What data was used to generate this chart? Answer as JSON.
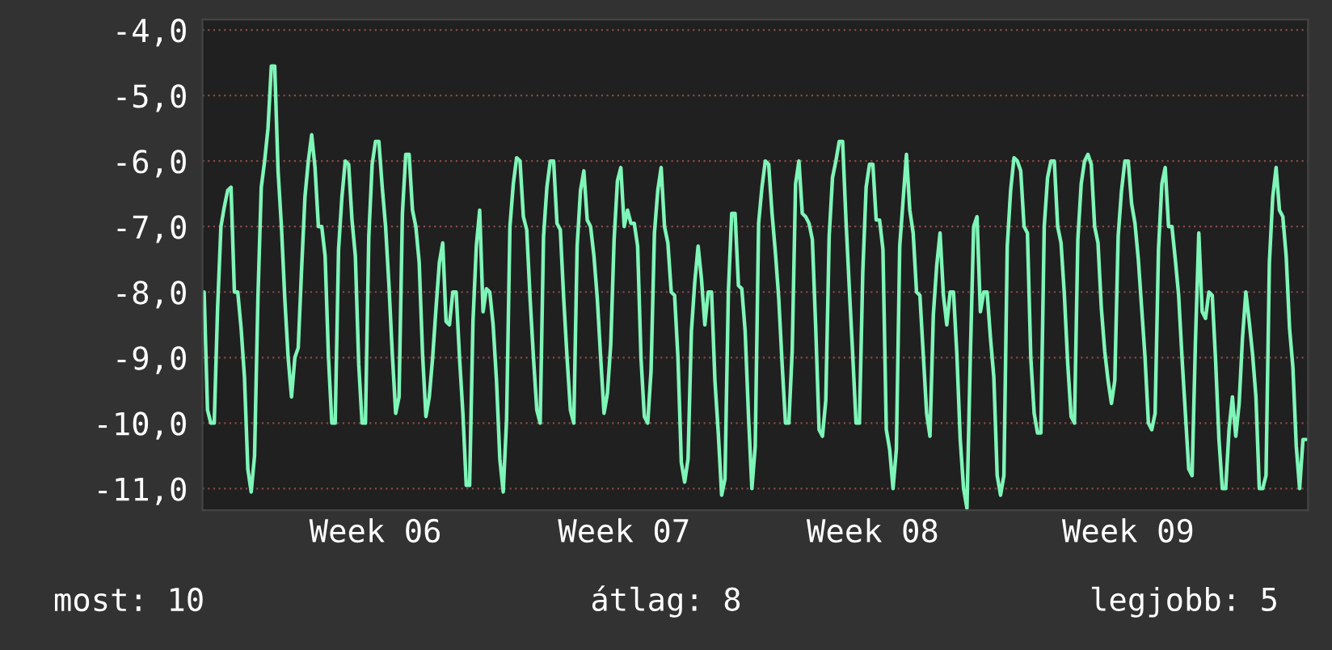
{
  "chart_data": {
    "type": "line",
    "categories": [
      null,
      null,
      null,
      null,
      null,
      null,
      null,
      null,
      null,
      null,
      null,
      null,
      null,
      null,
      null,
      null,
      null,
      null,
      null,
      null,
      null,
      null,
      null,
      null,
      null,
      null,
      null,
      null,
      null,
      null,
      null,
      null,
      null,
      null,
      null,
      null,
      null,
      null,
      null,
      null,
      null,
      null,
      null,
      null,
      null,
      null,
      null,
      null,
      null,
      null,
      null,
      "Week 06",
      null,
      null,
      null,
      null,
      null,
      null,
      null,
      null,
      null,
      null,
      null,
      null,
      null,
      null,
      null,
      null,
      null,
      null,
      null,
      null,
      null,
      null,
      null,
      null,
      null,
      null,
      null,
      null,
      null,
      null,
      null,
      null,
      null,
      null,
      null,
      null,
      null,
      null,
      null,
      null,
      null,
      null,
      null,
      null,
      null,
      null,
      null,
      null,
      null,
      null,
      null,
      null,
      null,
      null,
      null,
      null,
      null,
      null,
      null,
      null,
      null,
      null,
      null,
      null,
      null,
      null,
      null,
      null,
      null,
      null,
      null,
      null,
      null,
      "Week 07",
      null,
      null,
      null,
      null,
      null,
      null,
      null,
      null,
      null,
      null,
      null,
      null,
      null,
      null,
      null,
      null,
      null,
      null,
      null,
      null,
      null,
      null,
      null,
      null,
      null,
      null,
      null,
      null,
      null,
      null,
      null,
      null,
      null,
      null,
      null,
      null,
      null,
      null,
      null,
      null,
      null,
      null,
      null,
      null,
      null,
      null,
      null,
      null,
      null,
      null,
      null,
      null,
      null,
      null,
      null,
      null,
      null,
      null,
      null,
      null,
      null,
      null,
      null,
      null,
      null,
      null,
      null,
      null,
      null,
      null,
      null,
      null,
      null,
      "Week 08",
      null,
      null,
      null,
      null,
      null,
      null,
      null,
      null,
      null,
      null,
      null,
      null,
      null,
      null,
      null,
      null,
      null,
      null,
      null,
      null,
      null,
      null,
      null,
      null,
      null,
      null,
      null,
      null,
      null,
      null,
      null,
      null,
      null,
      null,
      null,
      null,
      null,
      null,
      null,
      null,
      null,
      null,
      null,
      null,
      null,
      null,
      null,
      null,
      null,
      null,
      null,
      null,
      null,
      null,
      null,
      null,
      null,
      null,
      null,
      null,
      null,
      null,
      null,
      null,
      null,
      null,
      null,
      null,
      null,
      null,
      null,
      null,
      null,
      null,
      null,
      "Week 09",
      null,
      null,
      null,
      null,
      null,
      null,
      null,
      null,
      null,
      null,
      null,
      null,
      null,
      null,
      null,
      null,
      null,
      null,
      null,
      null,
      null,
      null,
      null,
      null,
      null,
      null,
      null,
      null,
      null,
      null,
      null,
      null,
      null,
      null,
      null,
      null,
      null,
      null,
      null,
      null,
      null,
      null,
      null,
      null,
      null,
      null,
      null,
      null,
      null,
      null,
      null,
      null,
      null
    ],
    "series": [
      {
        "color": "#7ff5b8",
        "values": [
          -8.0,
          -9.8,
          -10.0,
          -10.0,
          -8.25,
          -7.0,
          -6.7,
          -6.45,
          -6.4,
          -8.0,
          -8.0,
          -8.55,
          -9.3,
          -10.7,
          -11.05,
          -10.5,
          -8.1,
          -6.4,
          -6.0,
          -5.5,
          -4.55,
          -4.55,
          -6.15,
          -7.0,
          -8.1,
          -9.0,
          -9.6,
          -9.0,
          -8.85,
          -7.65,
          -6.55,
          -6.0,
          -5.6,
          -6.1,
          -7.0,
          -7.0,
          -7.45,
          -9.0,
          -10.0,
          -10.0,
          -7.35,
          -6.55,
          -6.0,
          -6.05,
          -6.9,
          -7.45,
          -9.1,
          -10.0,
          -10.0,
          -7.15,
          -6.05,
          -5.7,
          -5.7,
          -6.4,
          -7.0,
          -7.9,
          -8.95,
          -9.85,
          -9.6,
          -6.8,
          -5.9,
          -5.9,
          -6.75,
          -7.0,
          -7.55,
          -8.95,
          -9.9,
          -9.6,
          -9.0,
          -8.25,
          -7.55,
          -7.25,
          -8.45,
          -8.5,
          -8.0,
          -8.0,
          -9.0,
          -9.85,
          -10.95,
          -10.95,
          -8.45,
          -7.3,
          -6.75,
          -8.3,
          -7.95,
          -8.0,
          -8.5,
          -9.35,
          -10.55,
          -11.05,
          -9.95,
          -7.0,
          -6.35,
          -5.95,
          -6.0,
          -6.85,
          -7.05,
          -8.1,
          -9.0,
          -9.8,
          -10.0,
          -7.15,
          -6.4,
          -6.0,
          -6.0,
          -6.95,
          -7.05,
          -8.1,
          -9.0,
          -9.8,
          -10.0,
          -7.3,
          -6.45,
          -6.15,
          -6.9,
          -7.0,
          -7.45,
          -8.1,
          -9.0,
          -9.85,
          -9.55,
          -8.8,
          -7.2,
          -6.3,
          -6.1,
          -7.0,
          -6.75,
          -6.95,
          -6.95,
          -7.3,
          -9.0,
          -9.9,
          -10.0,
          -9.2,
          -7.1,
          -6.45,
          -6.1,
          -7.0,
          -7.25,
          -8.0,
          -8.05,
          -9.0,
          -10.6,
          -10.9,
          -10.55,
          -8.6,
          -7.85,
          -7.3,
          -7.8,
          -8.5,
          -8.0,
          -8.0,
          -9.35,
          -10.15,
          -11.1,
          -10.85,
          -8.0,
          -6.8,
          -6.8,
          -7.9,
          -7.95,
          -8.6,
          -9.9,
          -11.0,
          -10.35,
          -6.95,
          -6.4,
          -6.0,
          -6.05,
          -6.8,
          -7.4,
          -8.1,
          -9.1,
          -10.0,
          -10.0,
          -8.9,
          -6.35,
          -6.0,
          -6.8,
          -6.85,
          -6.95,
          -7.2,
          -8.55,
          -10.1,
          -10.2,
          -9.65,
          -7.15,
          -6.25,
          -6.0,
          -5.7,
          -5.7,
          -6.9,
          -7.95,
          -8.95,
          -10.0,
          -10.0,
          -7.7,
          -6.4,
          -6.05,
          -6.05,
          -6.9,
          -6.9,
          -7.35,
          -10.1,
          -10.4,
          -11.0,
          -10.4,
          -7.3,
          -6.6,
          -5.9,
          -6.75,
          -7.1,
          -8.0,
          -8.05,
          -8.95,
          -9.85,
          -10.2,
          -8.35,
          -7.6,
          -7.1,
          -8.05,
          -8.5,
          -8.0,
          -8.0,
          -8.95,
          -10.25,
          -11.0,
          -11.3,
          -9.0,
          -7.0,
          -6.85,
          -8.3,
          -8.0,
          -8.0,
          -8.7,
          -9.3,
          -10.8,
          -11.1,
          -10.8,
          -7.3,
          -6.45,
          -5.95,
          -6.0,
          -6.15,
          -7.0,
          -7.1,
          -9.0,
          -9.85,
          -10.15,
          -10.15,
          -7.0,
          -6.25,
          -6.0,
          -6.0,
          -7.0,
          -7.25,
          -8.05,
          -9.1,
          -9.9,
          -10.0,
          -7.2,
          -6.35,
          -6.0,
          -5.9,
          -6.05,
          -7.0,
          -7.25,
          -8.25,
          -8.9,
          -9.35,
          -9.7,
          -9.35,
          -7.15,
          -6.45,
          -6.0,
          -6.0,
          -6.65,
          -6.95,
          -7.5,
          -8.25,
          -9.0,
          -10.0,
          -10.1,
          -9.85,
          -7.35,
          -6.35,
          -6.1,
          -7.0,
          -7.0,
          -7.5,
          -8.05,
          -9.0,
          -9.85,
          -10.7,
          -10.8,
          -8.75,
          -7.1,
          -8.3,
          -8.4,
          -8.0,
          -8.05,
          -9.05,
          -10.25,
          -11.0,
          -11.0,
          -10.1,
          -9.6,
          -10.2,
          -9.7,
          -8.7,
          -8.0,
          -8.45,
          -8.95,
          -9.6,
          -11.0,
          -11.0,
          -10.8,
          -7.55,
          -6.55,
          -6.1,
          -6.75,
          -6.85,
          -7.45,
          -8.55,
          -9.15,
          -10.35,
          -11.0,
          -10.25,
          -10.25
        ]
      }
    ],
    "ylim": [
      -11.33,
      -3.84
    ],
    "yticks": [
      {
        "value": -4,
        "label": "-4,0"
      },
      {
        "value": -5,
        "label": "-5,0"
      },
      {
        "value": -6,
        "label": "-6,0"
      },
      {
        "value": -7,
        "label": "-7,0"
      },
      {
        "value": -8,
        "label": "-8,0"
      },
      {
        "value": -9,
        "label": "-9,0"
      },
      {
        "value": -10,
        "label": "-10,0"
      },
      {
        "value": -11,
        "label": "-11,0"
      }
    ],
    "grid": "y",
    "annotations": [
      "most: 10",
      "átlag: 8",
      "legjobb: 5"
    ]
  }
}
